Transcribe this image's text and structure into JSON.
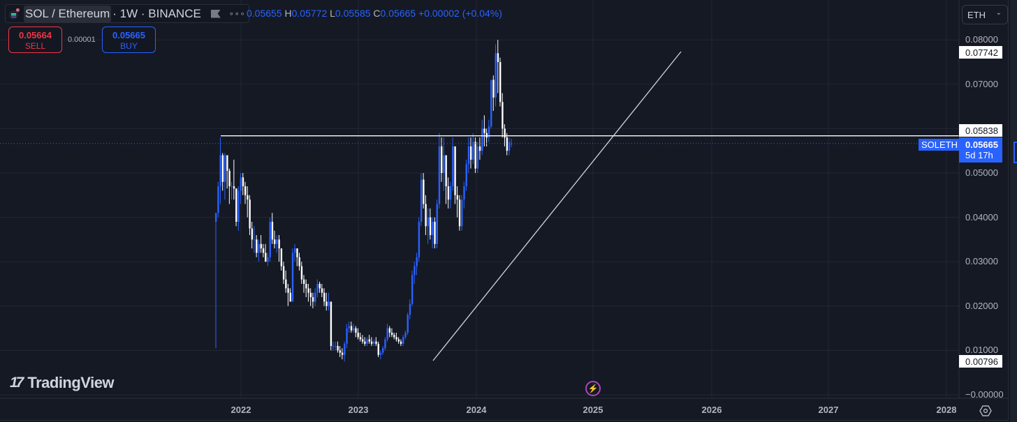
{
  "header": {
    "symbol_name": "SOL / Ethereum",
    "symbol_rest": "· 1W · BINANCE",
    "more_label": "∘∘∘",
    "ohlc": {
      "o_value": "0.05655",
      "h_label": "H",
      "h_value": "0.05772",
      "l_label": "L",
      "l_value": "0.05585",
      "c_label": "C",
      "c_value": "0.05665",
      "change": "+0.00002 (+0.04%)"
    }
  },
  "trade": {
    "sell_price": "0.05664",
    "sell_label": "SELL",
    "spread": "0.00001",
    "buy_price": "0.05665",
    "buy_label": "BUY"
  },
  "currency_select": {
    "value": "ETH",
    "chevron": "⌄"
  },
  "price_axis": {
    "ticks": [
      {
        "label": "0.08000",
        "value": 0.08
      },
      {
        "label": "0.07000",
        "value": 0.07
      },
      {
        "label": "0.05000",
        "value": 0.05
      },
      {
        "label": "0.04000",
        "value": 0.04
      },
      {
        "label": "0.03000",
        "value": 0.03
      },
      {
        "label": "0.02000",
        "value": 0.02
      },
      {
        "label": "0.01000",
        "value": 0.01
      },
      {
        "label": "−0.00000",
        "value": 0.0
      }
    ],
    "labels": {
      "high_marker": "0.07742",
      "hline_marker": "0.05838",
      "low_marker": "0.00796",
      "last_price": "0.05665",
      "countdown": "5d 17h",
      "symbol_tag": "SOLETH"
    }
  },
  "time_axis": {
    "years": [
      "2022",
      "2023",
      "2024",
      "2025",
      "2026",
      "2027",
      "2028"
    ]
  },
  "branding": {
    "logo_mark": "17",
    "logo_text": "TradingView",
    "bolt": "⚡"
  },
  "colors": {
    "up": "#2962ff",
    "down": "#ffffff",
    "background": "#151924",
    "grid": "#232733",
    "last_price_line": "#2962ff",
    "drawing": "#ffffff"
  },
  "chart_data": {
    "type": "candlestick",
    "title": "SOL / Ethereum · 1W · BINANCE",
    "xlabel": "",
    "ylabel": "ETH",
    "ylim": [
      -0.002,
      0.083
    ],
    "x_ticks": [
      "2022",
      "2023",
      "2024",
      "2025",
      "2026",
      "2027",
      "2028"
    ],
    "y_ticks": [
      0.0,
      0.01,
      0.02,
      0.03,
      0.04,
      0.05,
      0.07,
      0.08
    ],
    "grid": true,
    "last": {
      "open": 0.05655,
      "high": 0.05772,
      "low": 0.05585,
      "close": 0.05665,
      "change": 2e-05,
      "change_pct": 0.04
    },
    "horizontal_line": 0.05838,
    "trend_line": {
      "from": {
        "date": "2023-07",
        "value": 0.0075
      },
      "to": {
        "date": "2025-09",
        "value": 0.0775
      }
    },
    "period_high": 0.07742,
    "period_low": 0.00796,
    "candles_note": "weekly OHLC approximated from pixels, oldest first",
    "candles": [
      [
        0.039,
        0.041,
        0.0105,
        0.041
      ],
      [
        0.041,
        0.048,
        0.04,
        0.047
      ],
      [
        0.047,
        0.058,
        0.043,
        0.054
      ],
      [
        0.054,
        0.0545,
        0.046,
        0.048
      ],
      [
        0.048,
        0.0545,
        0.044,
        0.054
      ],
      [
        0.054,
        0.054,
        0.0465,
        0.0505
      ],
      [
        0.0505,
        0.051,
        0.043,
        0.047
      ],
      [
        0.047,
        0.048,
        0.044,
        0.047
      ],
      [
        0.047,
        0.053,
        0.044,
        0.0465
      ],
      [
        0.0465,
        0.0465,
        0.038,
        0.039
      ],
      [
        0.039,
        0.047,
        0.037,
        0.046
      ],
      [
        0.046,
        0.05,
        0.043,
        0.049
      ],
      [
        0.049,
        0.05,
        0.045,
        0.047
      ],
      [
        0.047,
        0.048,
        0.043,
        0.045
      ],
      [
        0.045,
        0.047,
        0.04,
        0.044
      ],
      [
        0.044,
        0.045,
        0.036,
        0.0375
      ],
      [
        0.0375,
        0.039,
        0.033,
        0.035
      ],
      [
        0.035,
        0.038,
        0.032,
        0.035
      ],
      [
        0.035,
        0.036,
        0.031,
        0.032
      ],
      [
        0.032,
        0.035,
        0.03,
        0.034
      ],
      [
        0.034,
        0.036,
        0.032,
        0.033
      ],
      [
        0.033,
        0.034,
        0.031,
        0.032
      ],
      [
        0.032,
        0.034,
        0.03,
        0.03
      ],
      [
        0.03,
        0.032,
        0.029,
        0.031
      ],
      [
        0.031,
        0.04,
        0.03,
        0.039
      ],
      [
        0.039,
        0.041,
        0.034,
        0.035
      ],
      [
        0.035,
        0.037,
        0.033,
        0.034
      ],
      [
        0.034,
        0.036,
        0.032,
        0.035
      ],
      [
        0.035,
        0.036,
        0.03,
        0.033
      ],
      [
        0.033,
        0.032,
        0.028,
        0.029
      ],
      [
        0.029,
        0.03,
        0.025,
        0.026
      ],
      [
        0.026,
        0.028,
        0.023,
        0.024
      ],
      [
        0.024,
        0.025,
        0.02,
        0.023
      ],
      [
        0.023,
        0.024,
        0.021,
        0.021
      ],
      [
        0.021,
        0.033,
        0.021,
        0.032
      ],
      [
        0.032,
        0.034,
        0.03,
        0.033
      ],
      [
        0.033,
        0.033,
        0.029,
        0.031
      ],
      [
        0.031,
        0.032,
        0.028,
        0.029
      ],
      [
        0.029,
        0.03,
        0.025,
        0.026
      ],
      [
        0.026,
        0.027,
        0.023,
        0.025
      ],
      [
        0.025,
        0.026,
        0.022,
        0.024
      ],
      [
        0.024,
        0.025,
        0.021,
        0.023
      ],
      [
        0.023,
        0.024,
        0.02,
        0.022
      ],
      [
        0.022,
        0.023,
        0.0195,
        0.021
      ],
      [
        0.021,
        0.024,
        0.02,
        0.023
      ],
      [
        0.023,
        0.026,
        0.022,
        0.025
      ],
      [
        0.025,
        0.0255,
        0.023,
        0.024
      ],
      [
        0.024,
        0.025,
        0.022,
        0.023
      ],
      [
        0.023,
        0.024,
        0.02,
        0.021
      ],
      [
        0.021,
        0.023,
        0.019,
        0.02
      ],
      [
        0.02,
        0.023,
        0.019,
        0.021
      ],
      [
        0.021,
        0.021,
        0.01,
        0.011
      ],
      [
        0.011,
        0.012,
        0.01,
        0.011
      ],
      [
        0.011,
        0.012,
        0.01,
        0.011
      ],
      [
        0.011,
        0.012,
        0.0095,
        0.01
      ],
      [
        0.01,
        0.011,
        0.0085,
        0.0095
      ],
      [
        0.0095,
        0.0105,
        0.008,
        0.009
      ],
      [
        0.009,
        0.012,
        0.0075,
        0.0115
      ],
      [
        0.0115,
        0.016,
        0.0105,
        0.015
      ],
      [
        0.015,
        0.0165,
        0.014,
        0.0155
      ],
      [
        0.0155,
        0.0165,
        0.014,
        0.0145
      ],
      [
        0.0145,
        0.016,
        0.014,
        0.015
      ],
      [
        0.015,
        0.0155,
        0.013,
        0.014
      ],
      [
        0.014,
        0.015,
        0.0125,
        0.013
      ],
      [
        0.013,
        0.014,
        0.012,
        0.0125
      ],
      [
        0.0125,
        0.0135,
        0.0115,
        0.012
      ],
      [
        0.012,
        0.013,
        0.011,
        0.0115
      ],
      [
        0.0115,
        0.013,
        0.011,
        0.0125
      ],
      [
        0.0125,
        0.0135,
        0.0115,
        0.012
      ],
      [
        0.012,
        0.013,
        0.011,
        0.0115
      ],
      [
        0.0115,
        0.0125,
        0.011,
        0.012
      ],
      [
        0.012,
        0.013,
        0.011,
        0.0115
      ],
      [
        0.0115,
        0.012,
        0.0085,
        0.009
      ],
      [
        0.009,
        0.01,
        0.008,
        0.0095
      ],
      [
        0.0095,
        0.011,
        0.009,
        0.0105
      ],
      [
        0.0105,
        0.013,
        0.01,
        0.0125
      ],
      [
        0.0125,
        0.016,
        0.012,
        0.015
      ],
      [
        0.015,
        0.0155,
        0.013,
        0.014
      ],
      [
        0.014,
        0.015,
        0.013,
        0.0135
      ],
      [
        0.0135,
        0.014,
        0.0125,
        0.013
      ],
      [
        0.013,
        0.014,
        0.012,
        0.0125
      ],
      [
        0.0125,
        0.013,
        0.0115,
        0.012
      ],
      [
        0.012,
        0.0125,
        0.011,
        0.0115
      ],
      [
        0.0115,
        0.0135,
        0.011,
        0.013
      ],
      [
        0.013,
        0.0145,
        0.0125,
        0.014
      ],
      [
        0.014,
        0.0185,
        0.0135,
        0.018
      ],
      [
        0.018,
        0.0215,
        0.017,
        0.0205
      ],
      [
        0.0205,
        0.028,
        0.02,
        0.027
      ],
      [
        0.027,
        0.03,
        0.025,
        0.029
      ],
      [
        0.029,
        0.032,
        0.027,
        0.031
      ],
      [
        0.031,
        0.04,
        0.03,
        0.039
      ],
      [
        0.039,
        0.05,
        0.038,
        0.0485
      ],
      [
        0.0485,
        0.05,
        0.042,
        0.043
      ],
      [
        0.043,
        0.045,
        0.036,
        0.038
      ],
      [
        0.038,
        0.042,
        0.034,
        0.04
      ],
      [
        0.04,
        0.042,
        0.035,
        0.036
      ],
      [
        0.036,
        0.04,
        0.033,
        0.039
      ],
      [
        0.039,
        0.04,
        0.033,
        0.034
      ],
      [
        0.034,
        0.044,
        0.033,
        0.043
      ],
      [
        0.043,
        0.059,
        0.042,
        0.056
      ],
      [
        0.056,
        0.058,
        0.048,
        0.05
      ],
      [
        0.05,
        0.058,
        0.046,
        0.054
      ],
      [
        0.054,
        0.054,
        0.043,
        0.047
      ],
      [
        0.047,
        0.049,
        0.042,
        0.044
      ],
      [
        0.044,
        0.048,
        0.042,
        0.047
      ],
      [
        0.047,
        0.058,
        0.046,
        0.056
      ],
      [
        0.056,
        0.056,
        0.043,
        0.045
      ],
      [
        0.045,
        0.047,
        0.04,
        0.044
      ],
      [
        0.044,
        0.045,
        0.037,
        0.038
      ],
      [
        0.038,
        0.045,
        0.037,
        0.044
      ],
      [
        0.044,
        0.048,
        0.042,
        0.047
      ],
      [
        0.047,
        0.053,
        0.046,
        0.052
      ],
      [
        0.052,
        0.058,
        0.05,
        0.056
      ],
      [
        0.056,
        0.058,
        0.051,
        0.053
      ],
      [
        0.053,
        0.059,
        0.052,
        0.057
      ],
      [
        0.057,
        0.058,
        0.05,
        0.051
      ],
      [
        0.051,
        0.057,
        0.05,
        0.056
      ],
      [
        0.056,
        0.058,
        0.053,
        0.055
      ],
      [
        0.055,
        0.062,
        0.054,
        0.06
      ],
      [
        0.06,
        0.063,
        0.056,
        0.059
      ],
      [
        0.059,
        0.06,
        0.056,
        0.058
      ],
      [
        0.058,
        0.062,
        0.057,
        0.0605
      ],
      [
        0.0605,
        0.07,
        0.06,
        0.071
      ],
      [
        0.071,
        0.072,
        0.064,
        0.067
      ],
      [
        0.067,
        0.079,
        0.065,
        0.077
      ],
      [
        0.077,
        0.08,
        0.068,
        0.075
      ],
      [
        0.075,
        0.076,
        0.065,
        0.066
      ],
      [
        0.066,
        0.068,
        0.058,
        0.06
      ],
      [
        0.06,
        0.061,
        0.056,
        0.058
      ],
      [
        0.058,
        0.059,
        0.054,
        0.055
      ],
      [
        0.055,
        0.058,
        0.054,
        0.057
      ],
      [
        0.05655,
        0.05772,
        0.05585,
        0.05665
      ]
    ]
  }
}
